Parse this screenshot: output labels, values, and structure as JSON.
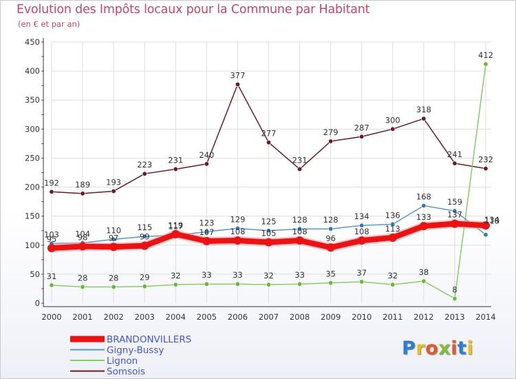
{
  "title": "Evolution des Impôts locaux pour la Commune par Habitant",
  "subtitle": "(en € et par an)",
  "logo": {
    "letters": [
      {
        "ch": "P",
        "color": "#2a7fd4"
      },
      {
        "ch": "r",
        "color": "#e8c020"
      },
      {
        "ch": "o",
        "color": "#e05a2b"
      },
      {
        "ch": "x",
        "color": "#7fbf3a"
      },
      {
        "ch": "i",
        "color": "#e05a2b"
      },
      {
        "ch": "t",
        "color": "#2a7fd4"
      },
      {
        "ch": "i",
        "color": "#e8c020"
      }
    ]
  },
  "chart_data": {
    "type": "line",
    "title": "Evolution des Impôts locaux pour la Commune par Habitant",
    "subtitle": "(en € et par an)",
    "xlabel": "",
    "ylabel": "",
    "ylim": [
      0,
      450
    ],
    "yticks": [
      0,
      50,
      100,
      150,
      200,
      250,
      300,
      350,
      400,
      450
    ],
    "grid": true,
    "legend_position": "bottom-left",
    "categories": [
      "2000",
      "2001",
      "2002",
      "2003",
      "2004",
      "2005",
      "2006",
      "2007",
      "2008",
      "2009",
      "2010",
      "2011",
      "2012",
      "2013",
      "2014"
    ],
    "series": [
      {
        "name": "Somsois",
        "color": "#6b1a1f",
        "emphasis": false,
        "values": [
          192,
          189,
          193,
          223,
          231,
          240,
          377,
          277,
          231,
          279,
          287,
          300,
          318,
          241,
          232
        ]
      },
      {
        "name": "Lignon",
        "color": "#88cc66",
        "dot_color": "#66bb33",
        "emphasis": false,
        "values": [
          31,
          28,
          28,
          29,
          32,
          33,
          33,
          32,
          33,
          35,
          37,
          32,
          38,
          8,
          412
        ]
      },
      {
        "name": "Gigny-Bussy",
        "color": "#5599cc",
        "dot_color": "#3377bb",
        "emphasis": false,
        "values": [
          103,
          104,
          110,
          115,
          117,
          123,
          129,
          125,
          128,
          128,
          134,
          136,
          168,
          159,
          118
        ]
      },
      {
        "name": "BRANDONVILLERS",
        "color": "#ee1111",
        "emphasis": true,
        "values": [
          95,
          98,
          97,
          99,
          119,
          107,
          108,
          105,
          108,
          96,
          108,
          113,
          133,
          137,
          134
        ]
      }
    ]
  }
}
